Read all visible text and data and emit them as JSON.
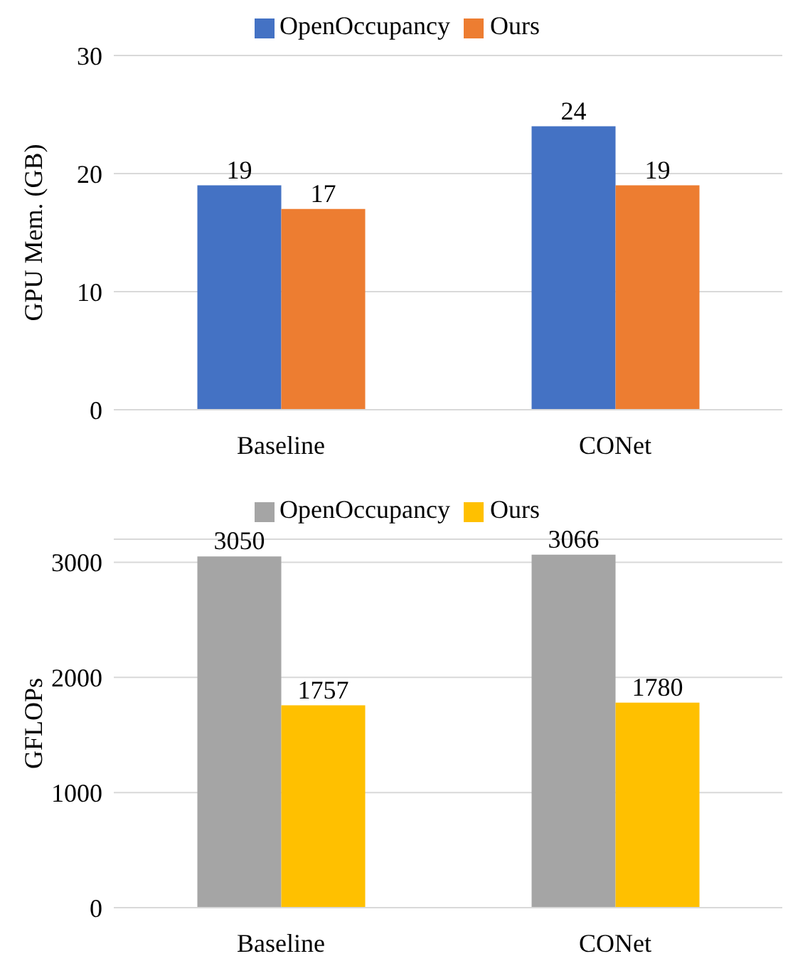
{
  "chart_data": [
    {
      "type": "bar",
      "ylabel": "GPU Mem. (GB)",
      "categories": [
        "Baseline",
        "CONet"
      ],
      "series": [
        {
          "name": "OpenOccupancy",
          "color": "#4472c4",
          "values": [
            19,
            24
          ]
        },
        {
          "name": "Ours",
          "color": "#ed7d31",
          "values": [
            17,
            19
          ]
        }
      ],
      "ylim": [
        0,
        30
      ],
      "yticks": [
        0,
        10,
        20,
        30
      ],
      "grid": "y",
      "legend": "top",
      "data_labels": true
    },
    {
      "type": "bar",
      "ylabel": "GFLOPs",
      "categories": [
        "Baseline",
        "CONet"
      ],
      "series": [
        {
          "name": "OpenOccupancy",
          "color": "#a5a5a5",
          "values": [
            3050,
            3066
          ]
        },
        {
          "name": "Ours",
          "color": "#ffc000",
          "values": [
            1757,
            1780
          ]
        }
      ],
      "ylim": [
        0,
        3200
      ],
      "yticks": [
        0,
        1000,
        2000,
        3000
      ],
      "grid": "y",
      "legend": "top",
      "data_labels": true
    }
  ]
}
